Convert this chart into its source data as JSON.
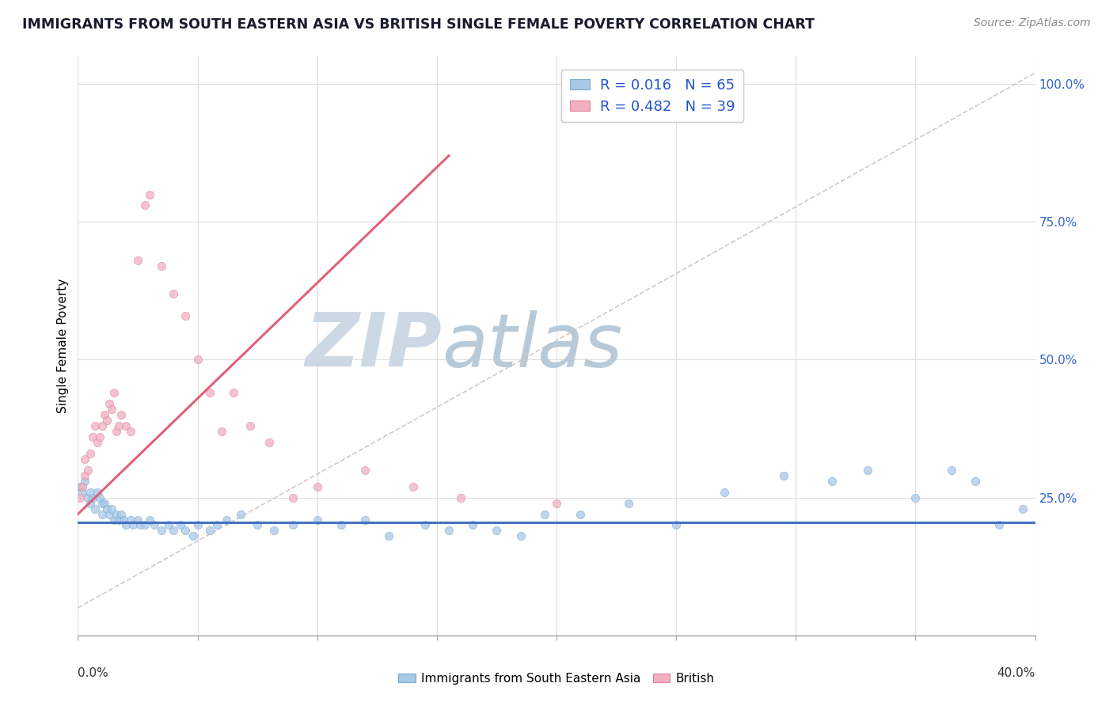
{
  "title": "IMMIGRANTS FROM SOUTH EASTERN ASIA VS BRITISH SINGLE FEMALE POVERTY CORRELATION CHART",
  "source": "Source: ZipAtlas.com",
  "ylabel": "Single Female Poverty",
  "legend_blue_r": "R = 0.016",
  "legend_blue_n": "N = 65",
  "legend_pink_r": "R = 0.482",
  "legend_pink_n": "N = 39",
  "blue_color": "#a8c8e8",
  "pink_color": "#f0b0c0",
  "blue_edge_color": "#7aaad0",
  "pink_edge_color": "#e080a0",
  "blue_line_color": "#4472c4",
  "pink_line_color": "#e0607a",
  "ref_line_color": "#ccbbbb",
  "watermark_zip_color": "#d0dde8",
  "watermark_atlas_color": "#b8ccd8",
  "legend_text_color": "#2255cc",
  "ytick_color": "#3366cc",
  "blue_scatter_x": [
    0.001,
    0.002,
    0.003,
    0.004,
    0.005,
    0.005,
    0.006,
    0.007,
    0.008,
    0.009,
    0.01,
    0.01,
    0.011,
    0.012,
    0.013,
    0.014,
    0.015,
    0.016,
    0.017,
    0.018,
    0.019,
    0.02,
    0.022,
    0.023,
    0.025,
    0.026,
    0.028,
    0.03,
    0.032,
    0.035,
    0.038,
    0.04,
    0.043,
    0.045,
    0.048,
    0.05,
    0.055,
    0.058,
    0.062,
    0.068,
    0.075,
    0.082,
    0.09,
    0.1,
    0.11,
    0.12,
    0.13,
    0.145,
    0.155,
    0.165,
    0.175,
    0.185,
    0.195,
    0.21,
    0.23,
    0.25,
    0.27,
    0.295,
    0.315,
    0.33,
    0.35,
    0.365,
    0.375,
    0.385,
    0.395
  ],
  "blue_scatter_y": [
    0.27,
    0.26,
    0.28,
    0.25,
    0.26,
    0.24,
    0.25,
    0.23,
    0.26,
    0.25,
    0.24,
    0.22,
    0.24,
    0.23,
    0.22,
    0.23,
    0.21,
    0.22,
    0.21,
    0.22,
    0.21,
    0.2,
    0.21,
    0.2,
    0.21,
    0.2,
    0.2,
    0.21,
    0.2,
    0.19,
    0.2,
    0.19,
    0.2,
    0.19,
    0.18,
    0.2,
    0.19,
    0.2,
    0.21,
    0.22,
    0.2,
    0.19,
    0.2,
    0.21,
    0.2,
    0.21,
    0.18,
    0.2,
    0.19,
    0.2,
    0.19,
    0.18,
    0.22,
    0.22,
    0.24,
    0.2,
    0.26,
    0.29,
    0.28,
    0.3,
    0.25,
    0.3,
    0.28,
    0.2,
    0.23
  ],
  "pink_scatter_x": [
    0.001,
    0.002,
    0.003,
    0.003,
    0.004,
    0.005,
    0.006,
    0.007,
    0.008,
    0.009,
    0.01,
    0.011,
    0.012,
    0.013,
    0.014,
    0.015,
    0.016,
    0.017,
    0.018,
    0.02,
    0.022,
    0.025,
    0.028,
    0.03,
    0.035,
    0.04,
    0.045,
    0.05,
    0.055,
    0.06,
    0.065,
    0.072,
    0.08,
    0.09,
    0.1,
    0.12,
    0.14,
    0.16,
    0.2
  ],
  "pink_scatter_y": [
    0.25,
    0.27,
    0.29,
    0.32,
    0.3,
    0.33,
    0.36,
    0.38,
    0.35,
    0.36,
    0.38,
    0.4,
    0.39,
    0.42,
    0.41,
    0.44,
    0.37,
    0.38,
    0.4,
    0.38,
    0.37,
    0.68,
    0.78,
    0.8,
    0.67,
    0.62,
    0.58,
    0.5,
    0.44,
    0.37,
    0.44,
    0.38,
    0.35,
    0.25,
    0.27,
    0.3,
    0.27,
    0.25,
    0.24
  ],
  "pink_line_x0": 0.0,
  "pink_line_y0": 0.22,
  "pink_line_x1": 0.155,
  "pink_line_y1": 0.87,
  "blue_line_y": 0.205,
  "ref_line_x0": 0.0,
  "ref_line_y0": 0.05,
  "ref_line_x1": 0.4,
  "ref_line_y1": 1.02,
  "xmin": 0.0,
  "xmax": 0.4,
  "ymin": 0.0,
  "ymax": 1.05,
  "figsize": [
    14.06,
    8.92
  ],
  "dpi": 100
}
